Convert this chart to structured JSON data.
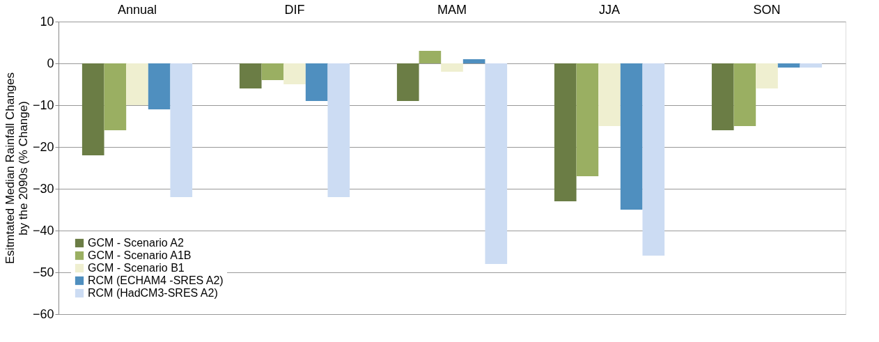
{
  "chart_data": {
    "type": "bar",
    "ylabel": "Esitmtated Median Rainfall Changes\nby the 2090s  (% Change)",
    "categories": [
      "Annual",
      "DIF",
      "MAM",
      "JJA",
      "SON"
    ],
    "series": [
      {
        "name": "GCM - Scenario A2",
        "color": "#6b7d45",
        "values": [
          -22,
          -6,
          -9,
          -33,
          -16
        ]
      },
      {
        "name": "GCM - Scenario A1B",
        "color": "#9aaf62",
        "values": [
          -16,
          -4,
          3,
          -27,
          -15
        ]
      },
      {
        "name": "GCM - Scenario B1",
        "color": "#efefd0",
        "values": [
          -10,
          -5,
          -2,
          -15,
          -6
        ]
      },
      {
        "name": "RCM (ECHAM4 -SRES A2)",
        "color": "#4f8fbf",
        "values": [
          -11,
          -9,
          1,
          -35,
          -1
        ]
      },
      {
        "name": "RCM (HadCM3-SRES A2)",
        "color": "#ccdcf3",
        "values": [
          -32,
          -32,
          -48,
          -46,
          -1
        ]
      }
    ],
    "ylim": [
      -60,
      10
    ],
    "yticks": [
      -60,
      -50,
      -40,
      -30,
      -20,
      -10,
      0,
      10
    ],
    "grid": "y",
    "legend": "bottom left"
  }
}
